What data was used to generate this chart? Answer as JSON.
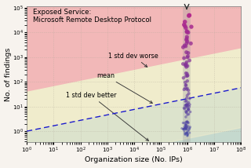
{
  "title": "Exposed Service:\nMicrosoft Remote Desktop Protocol",
  "xlabel": "Organization size (No. IPs)",
  "ylabel": "No. of findings",
  "xlim_log": [
    0,
    8
  ],
  "ylim_log_min": -0.45,
  "ylim_log_max": 5.05,
  "slope": 0.22,
  "intercept_mean": 0.0,
  "std_log": 1.6,
  "bg_color": "#f7f3ee",
  "region_bad_color": "#f2b8b8",
  "region_mid_color": "#f0eccc",
  "region_good_color": "#c5d9ce",
  "line_color": "#1a1acc",
  "scatter_x_log_center": 5.97,
  "scatter_x_log_std": 0.07,
  "n_scatter": 130,
  "annotation_fontsize": 5.8,
  "title_fontsize": 6.2,
  "tick_fontsize": 5.2,
  "label_fontsize": 6.8,
  "arrow_color": "#333333",
  "vline_color": "#999999",
  "vline_alpha": 0.3,
  "vline_lw": 7
}
